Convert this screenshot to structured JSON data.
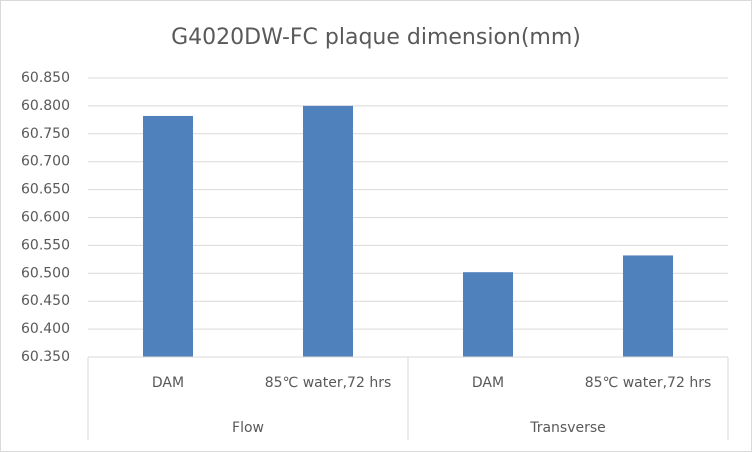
{
  "chart_data": {
    "type": "bar",
    "title": "G4020DW-FC plaque dimension(mm)",
    "groups": [
      {
        "name": "Flow",
        "categories": [
          "DAM",
          "85℃ water,72 hrs"
        ],
        "values": [
          60.782,
          60.8
        ]
      },
      {
        "name": "Transverse",
        "categories": [
          "DAM",
          "85℃ water,72 hrs"
        ],
        "values": [
          60.502,
          60.532
        ]
      }
    ],
    "color": "#4f81bd",
    "ylim": [
      60.35,
      60.85
    ],
    "yticks": [
      {
        "value": 60.35,
        "label": "60.350"
      },
      {
        "value": 60.4,
        "label": "60.400"
      },
      {
        "value": 60.45,
        "label": "60.450"
      },
      {
        "value": 60.5,
        "label": "60.500"
      },
      {
        "value": 60.55,
        "label": "60.550"
      },
      {
        "value": 60.6,
        "label": "60.600"
      },
      {
        "value": 60.65,
        "label": "60.650"
      },
      {
        "value": 60.7,
        "label": "60.700"
      },
      {
        "value": 60.75,
        "label": "60.750"
      },
      {
        "value": 60.8,
        "label": "60.800"
      },
      {
        "value": 60.85,
        "label": "60.850"
      }
    ],
    "grid": true
  }
}
